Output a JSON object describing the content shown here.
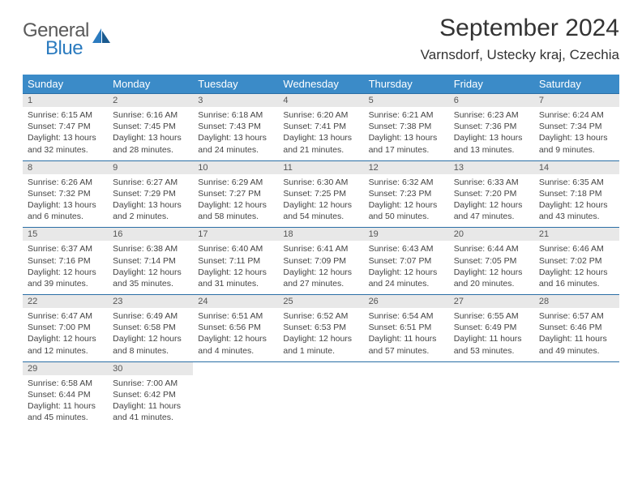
{
  "brand": {
    "part1": "General",
    "part2": "Blue"
  },
  "title": "September 2024",
  "location": "Varnsdorf, Ustecky kraj, Czechia",
  "colors": {
    "header_bg": "#3b8bc8",
    "rule": "#2a6ea5",
    "daynum_bg": "#e8e8e8"
  },
  "day_headers": [
    "Sunday",
    "Monday",
    "Tuesday",
    "Wednesday",
    "Thursday",
    "Friday",
    "Saturday"
  ],
  "weeks": [
    [
      {
        "n": "1",
        "sr": "6:15 AM",
        "ss": "7:47 PM",
        "dl": "13 hours and 32 minutes."
      },
      {
        "n": "2",
        "sr": "6:16 AM",
        "ss": "7:45 PM",
        "dl": "13 hours and 28 minutes."
      },
      {
        "n": "3",
        "sr": "6:18 AM",
        "ss": "7:43 PM",
        "dl": "13 hours and 24 minutes."
      },
      {
        "n": "4",
        "sr": "6:20 AM",
        "ss": "7:41 PM",
        "dl": "13 hours and 21 minutes."
      },
      {
        "n": "5",
        "sr": "6:21 AM",
        "ss": "7:38 PM",
        "dl": "13 hours and 17 minutes."
      },
      {
        "n": "6",
        "sr": "6:23 AM",
        "ss": "7:36 PM",
        "dl": "13 hours and 13 minutes."
      },
      {
        "n": "7",
        "sr": "6:24 AM",
        "ss": "7:34 PM",
        "dl": "13 hours and 9 minutes."
      }
    ],
    [
      {
        "n": "8",
        "sr": "6:26 AM",
        "ss": "7:32 PM",
        "dl": "13 hours and 6 minutes."
      },
      {
        "n": "9",
        "sr": "6:27 AM",
        "ss": "7:29 PM",
        "dl": "13 hours and 2 minutes."
      },
      {
        "n": "10",
        "sr": "6:29 AM",
        "ss": "7:27 PM",
        "dl": "12 hours and 58 minutes."
      },
      {
        "n": "11",
        "sr": "6:30 AM",
        "ss": "7:25 PM",
        "dl": "12 hours and 54 minutes."
      },
      {
        "n": "12",
        "sr": "6:32 AM",
        "ss": "7:23 PM",
        "dl": "12 hours and 50 minutes."
      },
      {
        "n": "13",
        "sr": "6:33 AM",
        "ss": "7:20 PM",
        "dl": "12 hours and 47 minutes."
      },
      {
        "n": "14",
        "sr": "6:35 AM",
        "ss": "7:18 PM",
        "dl": "12 hours and 43 minutes."
      }
    ],
    [
      {
        "n": "15",
        "sr": "6:37 AM",
        "ss": "7:16 PM",
        "dl": "12 hours and 39 minutes."
      },
      {
        "n": "16",
        "sr": "6:38 AM",
        "ss": "7:14 PM",
        "dl": "12 hours and 35 minutes."
      },
      {
        "n": "17",
        "sr": "6:40 AM",
        "ss": "7:11 PM",
        "dl": "12 hours and 31 minutes."
      },
      {
        "n": "18",
        "sr": "6:41 AM",
        "ss": "7:09 PM",
        "dl": "12 hours and 27 minutes."
      },
      {
        "n": "19",
        "sr": "6:43 AM",
        "ss": "7:07 PM",
        "dl": "12 hours and 24 minutes."
      },
      {
        "n": "20",
        "sr": "6:44 AM",
        "ss": "7:05 PM",
        "dl": "12 hours and 20 minutes."
      },
      {
        "n": "21",
        "sr": "6:46 AM",
        "ss": "7:02 PM",
        "dl": "12 hours and 16 minutes."
      }
    ],
    [
      {
        "n": "22",
        "sr": "6:47 AM",
        "ss": "7:00 PM",
        "dl": "12 hours and 12 minutes."
      },
      {
        "n": "23",
        "sr": "6:49 AM",
        "ss": "6:58 PM",
        "dl": "12 hours and 8 minutes."
      },
      {
        "n": "24",
        "sr": "6:51 AM",
        "ss": "6:56 PM",
        "dl": "12 hours and 4 minutes."
      },
      {
        "n": "25",
        "sr": "6:52 AM",
        "ss": "6:53 PM",
        "dl": "12 hours and 1 minute."
      },
      {
        "n": "26",
        "sr": "6:54 AM",
        "ss": "6:51 PM",
        "dl": "11 hours and 57 minutes."
      },
      {
        "n": "27",
        "sr": "6:55 AM",
        "ss": "6:49 PM",
        "dl": "11 hours and 53 minutes."
      },
      {
        "n": "28",
        "sr": "6:57 AM",
        "ss": "6:46 PM",
        "dl": "11 hours and 49 minutes."
      }
    ],
    [
      {
        "n": "29",
        "sr": "6:58 AM",
        "ss": "6:44 PM",
        "dl": "11 hours and 45 minutes."
      },
      {
        "n": "30",
        "sr": "7:00 AM",
        "ss": "6:42 PM",
        "dl": "11 hours and 41 minutes."
      },
      null,
      null,
      null,
      null,
      null
    ]
  ]
}
